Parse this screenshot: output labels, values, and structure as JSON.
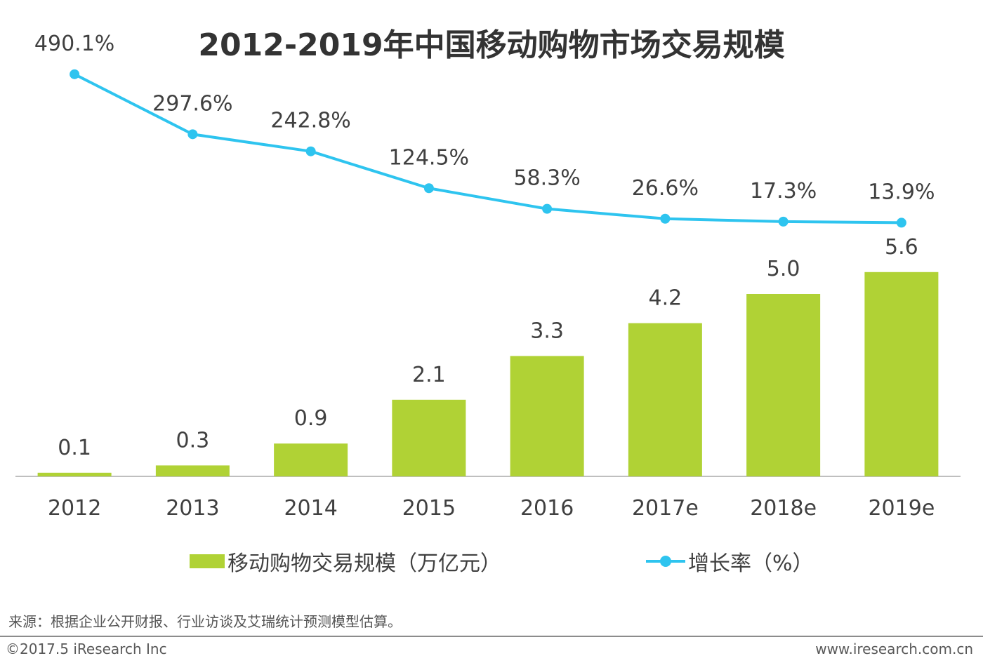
{
  "chart_data": {
    "type": "bar+line",
    "title": "2012-2019年中国移动购物市场交易规模",
    "categories": [
      "2012",
      "2013",
      "2014",
      "2015",
      "2016",
      "2017e",
      "2018e",
      "2019e"
    ],
    "series": [
      {
        "name": "移动购物交易规模（万亿元）",
        "type": "bar",
        "values": [
          0.1,
          0.3,
          0.9,
          2.1,
          3.3,
          4.2,
          5.0,
          5.6
        ],
        "labels": [
          "0.1",
          "0.3",
          "0.9",
          "2.1",
          "3.3",
          "4.2",
          "5.0",
          "5.6"
        ],
        "color": "#b0d235"
      },
      {
        "name": "增长率（%）",
        "type": "line",
        "values": [
          490.1,
          297.6,
          242.8,
          124.5,
          58.3,
          26.6,
          17.3,
          13.9
        ],
        "labels": [
          "490.1%",
          "297.6%",
          "242.8%",
          "124.5%",
          "58.3%",
          "26.6%",
          "17.3%",
          "13.9%"
        ],
        "color": "#2ec4ef"
      }
    ],
    "bar_axis_range": [
      0,
      6.0
    ],
    "line_axis_range": [
      -800,
      600
    ],
    "grid": false,
    "legend_position": "bottom"
  },
  "legend": {
    "bar_label": "移动购物交易规模（万亿元）",
    "line_label": "增长率（%）"
  },
  "footer": {
    "source": "来源：根据企业公开财报、行业访谈及艾瑞统计预测模型估算。",
    "copyright": "©2017.5 iResearch Inc",
    "website": "www.iresearch.com.cn"
  }
}
